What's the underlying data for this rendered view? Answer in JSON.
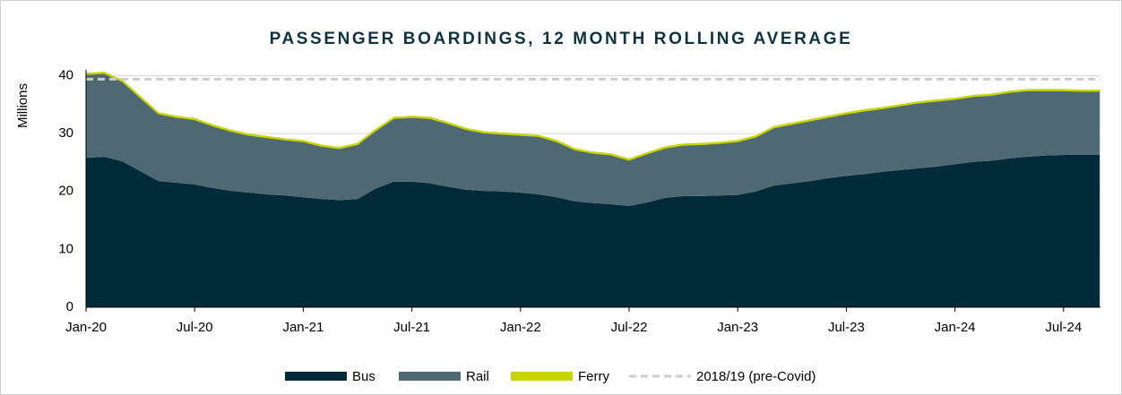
{
  "chart_data": {
    "type": "stacked_area",
    "title": "PASSENGER BOARDINGS, 12 MONTH ROLLING AVERAGE",
    "y_label": "Millions",
    "categories": [
      "Jan-20",
      null,
      null,
      null,
      null,
      null,
      "Jul-20",
      null,
      null,
      null,
      null,
      null,
      "Jan-21",
      null,
      null,
      null,
      null,
      null,
      "Jul-21",
      null,
      null,
      null,
      null,
      null,
      "Jan-22",
      null,
      null,
      null,
      null,
      null,
      "Jul-22",
      null,
      null,
      null,
      null,
      null,
      "Jan-23",
      null,
      null,
      null,
      null,
      null,
      "Jul-23",
      null,
      null,
      null,
      null,
      null,
      "Jan-24",
      null,
      null,
      null,
      null,
      null,
      "Jul-24",
      null,
      null
    ],
    "series": [
      {
        "name": "Bus",
        "color": "#022b3a",
        "values": [
          25.8,
          26.0,
          25.2,
          23.5,
          21.8,
          21.5,
          21.2,
          20.6,
          20.1,
          19.8,
          19.5,
          19.3,
          19.0,
          18.7,
          18.5,
          18.7,
          20.5,
          21.7,
          21.7,
          21.4,
          20.8,
          20.3,
          20.1,
          20.0,
          19.8,
          19.5,
          19.0,
          18.3,
          18.0,
          17.8,
          17.5,
          18.1,
          18.9,
          19.2,
          19.2,
          19.3,
          19.4,
          20.0,
          21.0,
          21.4,
          21.8,
          22.3,
          22.7,
          23.0,
          23.4,
          23.7,
          24.0,
          24.3,
          24.7,
          25.1,
          25.3,
          25.7,
          26.0,
          26.2,
          26.3,
          26.3,
          26.3
        ]
      },
      {
        "name": "Rail",
        "color": "#4f6974",
        "values": [
          14.4,
          14.4,
          13.8,
          12.7,
          11.6,
          11.3,
          11.2,
          10.7,
          10.3,
          9.9,
          9.8,
          9.6,
          9.6,
          9.1,
          8.9,
          9.4,
          10.0,
          10.9,
          11.1,
          11.2,
          10.9,
          10.4,
          10.0,
          9.9,
          9.9,
          10.0,
          9.6,
          8.9,
          8.6,
          8.5,
          7.9,
          8.4,
          8.6,
          8.8,
          8.9,
          9.0,
          9.2,
          9.4,
          10.0,
          10.2,
          10.4,
          10.5,
          10.7,
          10.9,
          10.9,
          11.1,
          11.3,
          11.3,
          11.2,
          11.3,
          11.3,
          11.4,
          11.4,
          11.2,
          11.1,
          11.0,
          11.0
        ]
      },
      {
        "name": "Ferry",
        "color": "#c8d400",
        "values": [
          0.2,
          0.2,
          0.2,
          0.2,
          0.2,
          0.2,
          0.2,
          0.2,
          0.2,
          0.2,
          0.2,
          0.2,
          0.2,
          0.2,
          0.2,
          0.2,
          0.2,
          0.2,
          0.2,
          0.2,
          0.2,
          0.2,
          0.2,
          0.2,
          0.2,
          0.2,
          0.2,
          0.2,
          0.2,
          0.2,
          0.2,
          0.2,
          0.2,
          0.2,
          0.2,
          0.2,
          0.2,
          0.2,
          0.2,
          0.2,
          0.2,
          0.2,
          0.2,
          0.2,
          0.2,
          0.2,
          0.2,
          0.2,
          0.2,
          0.2,
          0.2,
          0.2,
          0.2,
          0.2,
          0.2,
          0.2,
          0.2
        ]
      }
    ],
    "reference_line": {
      "name": "2018/19 (pre-Covid)",
      "value": 39.4,
      "color": "#c8cdd0"
    },
    "ylim": [
      0,
      41
    ],
    "yticks": [
      0,
      10,
      20,
      30,
      40
    ],
    "grid": true
  }
}
